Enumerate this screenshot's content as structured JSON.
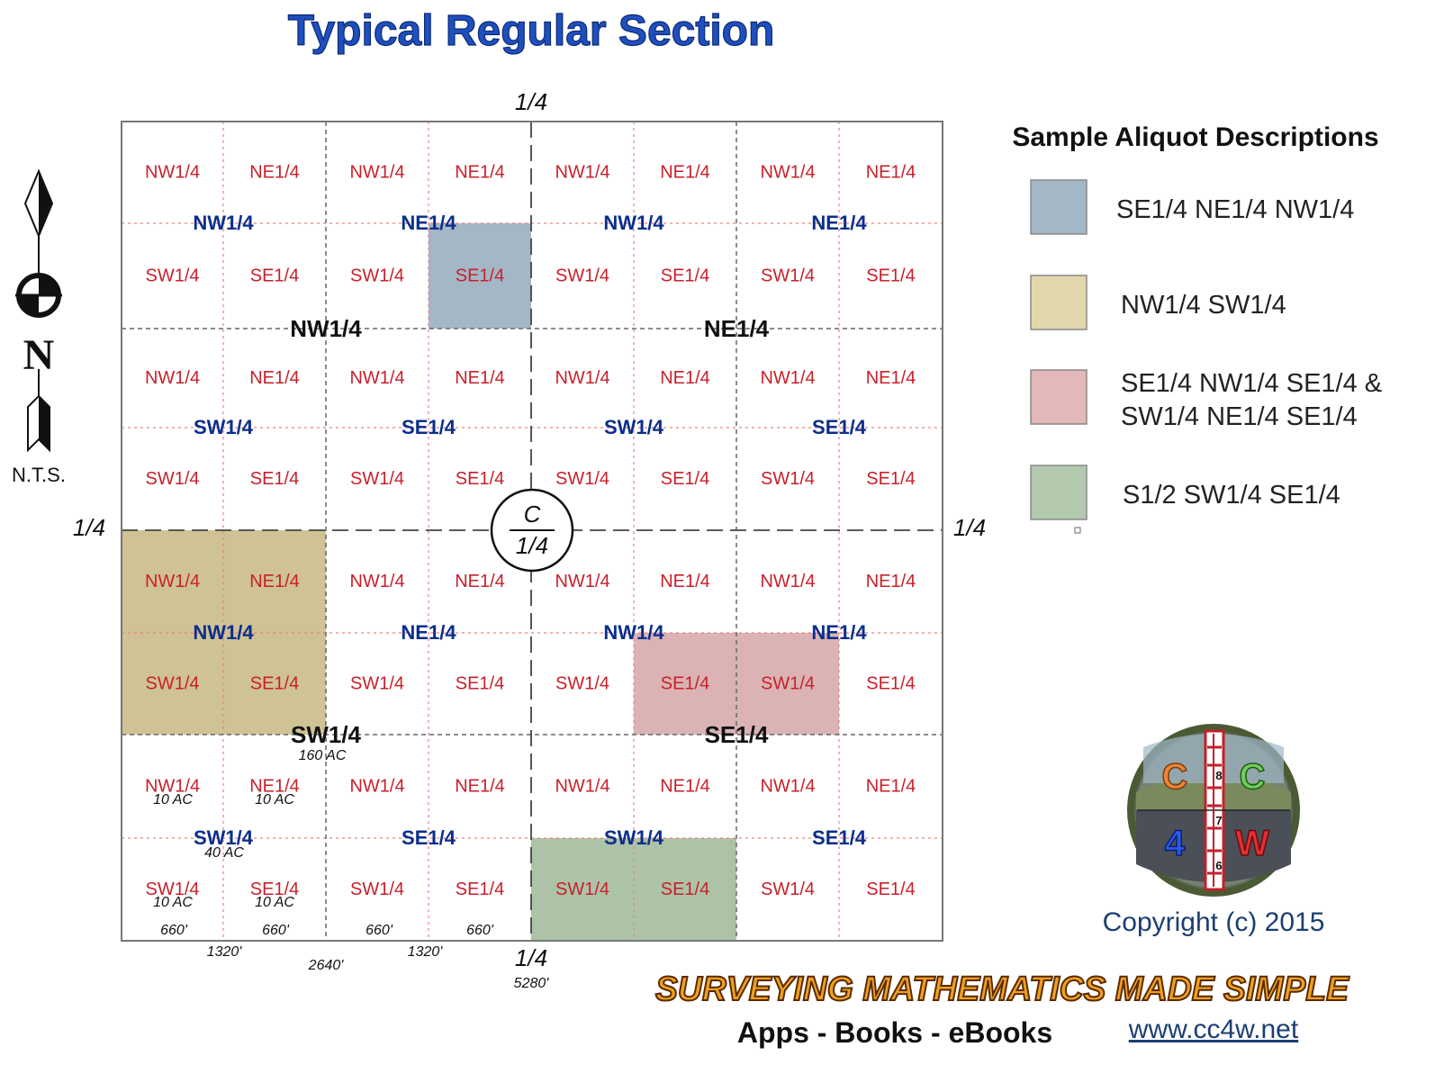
{
  "title": "Typical Regular Section",
  "north_arrow": {
    "letter": "N",
    "note": "N.T.S."
  },
  "section": {
    "quarter_corner_label": "1/4",
    "center_label_top": "C",
    "center_label_bottom": "1/4",
    "quarter_labels": [
      "NW1/4",
      "NE1/4",
      "SW1/4",
      "SE1/4"
    ],
    "sixteenth_labels": [
      "NW1/4",
      "NE1/4",
      "SW1/4",
      "SE1/4"
    ],
    "area_notes": {
      "quarter": "160 AC",
      "forty": "40 AC",
      "ten": "10 AC"
    },
    "dimensions": {
      "d660": "660'",
      "d1320": "1320'",
      "d2640": "2640'",
      "d5280": "5280'"
    }
  },
  "legend": {
    "heading": "Sample Aliquot Descriptions",
    "items": [
      {
        "lines": [
          "SE1/4 NE1/4 NW1/4"
        ],
        "color": "#a4b7c6"
      },
      {
        "lines": [
          "NW1/4 SW1/4"
        ],
        "color": "#e2d6ac"
      },
      {
        "lines": [
          "SE1/4 NW1/4 SE1/4 &",
          "SW1/4 NE1/4 SE1/4"
        ],
        "color": "#e2b8b9"
      },
      {
        "lines": [
          "S1/2 SW1/4 SE1/4"
        ],
        "color": "#b3c9ae"
      }
    ]
  },
  "highlights": [
    {
      "color": "#a4b7c6"
    },
    {
      "color": "#cfc294"
    },
    {
      "color": "#dbb3b4"
    },
    {
      "color": "#adc3a8"
    }
  ],
  "logo": {
    "letters": [
      "C",
      "C",
      "4",
      "W"
    ],
    "rod_numbers": [
      "8",
      "7",
      "6"
    ]
  },
  "copyright": "Copyright (c) 2015",
  "brand": "SURVEYING MATHEMATICS MADE SIMPLE",
  "tagline": "Apps - Books - eBooks",
  "website": "www.cc4w.net"
}
